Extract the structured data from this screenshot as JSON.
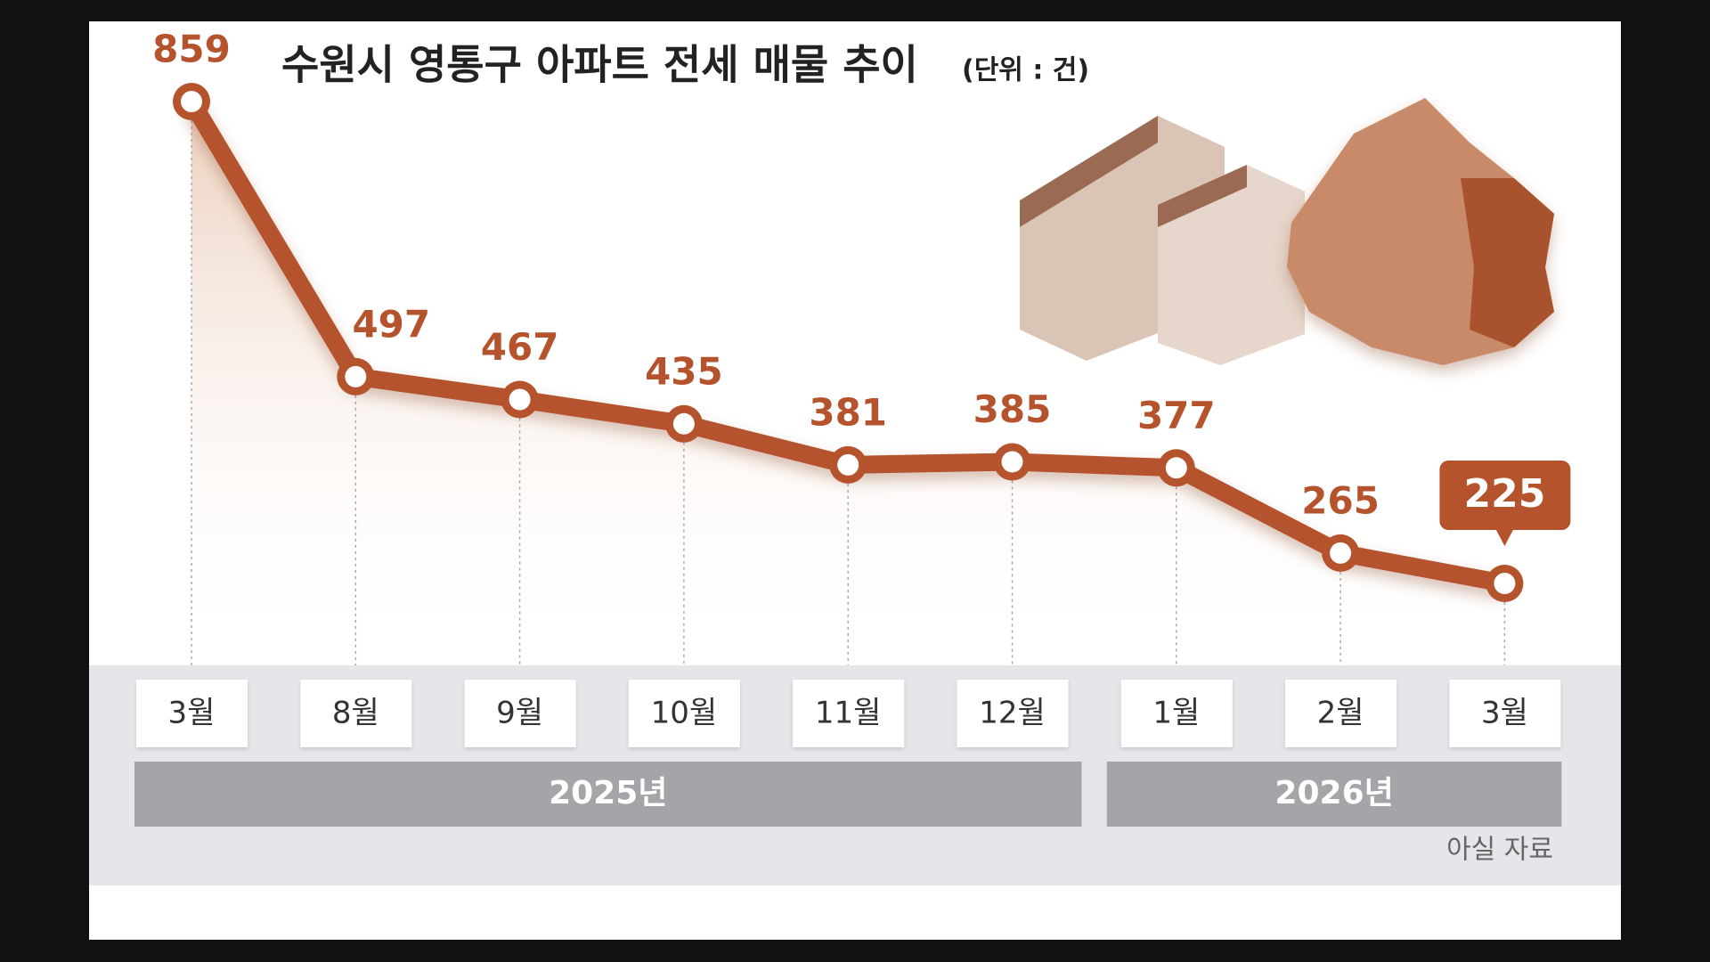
{
  "chart_data": {
    "type": "line",
    "title": "수원시 영통구 아파트 전세 매물 추이",
    "unit": "(단위 : 건)",
    "groups": [
      {
        "label": "2025년",
        "categories": [
          "3월",
          "8월",
          "9월",
          "10월",
          "11월",
          "12월"
        ]
      },
      {
        "label": "2026년",
        "categories": [
          "1월",
          "2월",
          "3월"
        ]
      }
    ],
    "values": [
      859,
      497,
      467,
      435,
      381,
      385,
      377,
      265,
      225
    ],
    "color": "#b5532d",
    "source": "아실 자료"
  }
}
